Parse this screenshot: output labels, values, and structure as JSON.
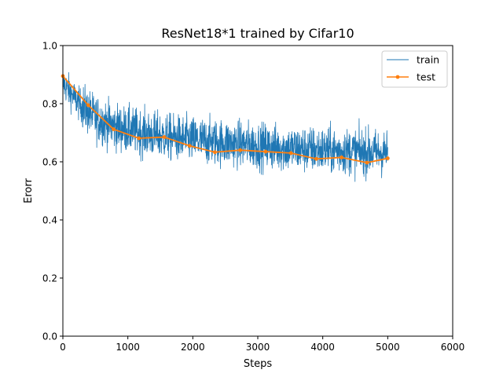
{
  "chart_data": {
    "type": "line",
    "title": "ResNet18*1 trained by Cifar10",
    "xlabel": "Steps",
    "ylabel": "Erorr",
    "xlim": [
      0,
      6000
    ],
    "ylim": [
      0.0,
      1.0
    ],
    "xticks": [
      "0",
      "1000",
      "2000",
      "3000",
      "4000",
      "5000",
      "6000"
    ],
    "yticks": [
      "0.0",
      "0.2",
      "0.4",
      "0.6",
      "0.8",
      "1.0"
    ],
    "grid": false,
    "legend_position": "top-right",
    "series": [
      {
        "name": "train",
        "color": "#1f77b4",
        "style": "thin noisy line",
        "x_range": [
          0,
          5000
        ],
        "trend": [
          [
            0,
            0.87
          ],
          [
            250,
            0.8
          ],
          [
            500,
            0.75
          ],
          [
            800,
            0.72
          ],
          [
            1200,
            0.7
          ],
          [
            1600,
            0.685
          ],
          [
            2000,
            0.675
          ],
          [
            2500,
            0.665
          ],
          [
            3000,
            0.655
          ],
          [
            3500,
            0.645
          ],
          [
            4000,
            0.64
          ],
          [
            4500,
            0.635
          ],
          [
            5000,
            0.63
          ]
        ],
        "noise_amplitude": 0.045
      },
      {
        "name": "test",
        "color": "#ff7f0e",
        "style": "line with dot markers",
        "x": [
          0,
          390,
          780,
          1170,
          1560,
          1950,
          2340,
          2730,
          3120,
          3510,
          3900,
          4290,
          4680,
          5000
        ],
        "y": [
          0.895,
          0.795,
          0.712,
          0.681,
          0.685,
          0.655,
          0.633,
          0.64,
          0.635,
          0.63,
          0.61,
          0.615,
          0.597,
          0.612
        ]
      }
    ]
  }
}
